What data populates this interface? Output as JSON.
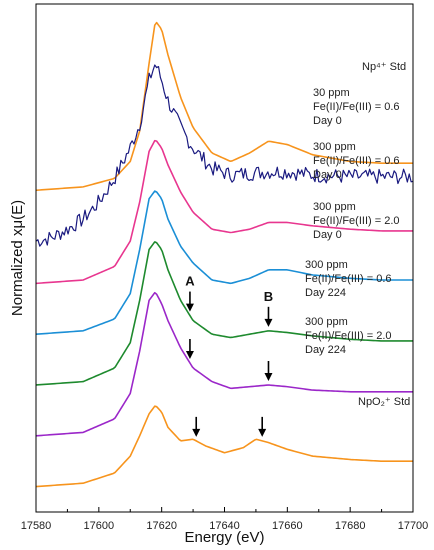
{
  "chart_data": {
    "type": "line",
    "xlabel": "Energy (eV)",
    "ylabel": "Normalized xμ(E)",
    "xlim": [
      17580,
      17700
    ],
    "x_ticks": [
      17580,
      17600,
      17620,
      17640,
      17660,
      17680,
      17700
    ],
    "grid": false,
    "series": [
      {
        "color": "#f7941d",
        "baseline": 0.75,
        "labels": [
          "Np⁴⁺ Std"
        ],
        "points": [
          [
            17580,
            0.75
          ],
          [
            17595,
            0.77
          ],
          [
            17605,
            0.82
          ],
          [
            17610,
            0.92
          ],
          [
            17613,
            1.1
          ],
          [
            17616,
            1.5
          ],
          [
            17618,
            1.75
          ],
          [
            17620,
            1.7
          ],
          [
            17622,
            1.55
          ],
          [
            17626,
            1.3
          ],
          [
            17630,
            1.12
          ],
          [
            17636,
            0.97
          ],
          [
            17642,
            0.92
          ],
          [
            17648,
            0.97
          ],
          [
            17654,
            1.04
          ],
          [
            17660,
            1.02
          ],
          [
            17668,
            0.96
          ],
          [
            17680,
            0.92
          ],
          [
            17690,
            0.91
          ],
          [
            17700,
            0.91
          ]
        ]
      },
      {
        "color": "#1a1a80",
        "baseline": 0.47,
        "labels": [
          "30 ppm",
          "Fe(II)/Fe(III) = 0.6",
          "Day 0"
        ],
        "points": [
          [
            17580,
            0.45
          ],
          [
            17585,
            0.47
          ],
          [
            17590,
            0.52
          ],
          [
            17595,
            0.58
          ],
          [
            17600,
            0.68
          ],
          [
            17605,
            0.82
          ],
          [
            17610,
            1.0
          ],
          [
            17613,
            1.14
          ],
          [
            17616,
            1.4
          ],
          [
            17618,
            1.5
          ],
          [
            17620,
            1.4
          ],
          [
            17622,
            1.28
          ],
          [
            17626,
            1.12
          ],
          [
            17630,
            1.0
          ],
          [
            17636,
            0.88
          ],
          [
            17642,
            0.84
          ],
          [
            17648,
            0.85
          ],
          [
            17654,
            0.86
          ],
          [
            17660,
            0.86
          ],
          [
            17668,
            0.84
          ],
          [
            17680,
            0.83
          ],
          [
            17690,
            0.83
          ],
          [
            17700,
            0.83
          ]
        ]
      },
      {
        "color": "#e8368f",
        "baseline": 0.2,
        "labels": [
          "300 ppm",
          "Fe(II)/Fe(III) = 0.6",
          "Day 0"
        ],
        "points": [
          [
            17580,
            0.2
          ],
          [
            17595,
            0.22
          ],
          [
            17605,
            0.3
          ],
          [
            17610,
            0.45
          ],
          [
            17613,
            0.68
          ],
          [
            17616,
            0.98
          ],
          [
            17618,
            1.05
          ],
          [
            17620,
            1.0
          ],
          [
            17622,
            0.9
          ],
          [
            17626,
            0.74
          ],
          [
            17630,
            0.62
          ],
          [
            17636,
            0.52
          ],
          [
            17642,
            0.5
          ],
          [
            17648,
            0.52
          ],
          [
            17654,
            0.56
          ],
          [
            17660,
            0.56
          ],
          [
            17668,
            0.54
          ],
          [
            17680,
            0.52
          ],
          [
            17690,
            0.51
          ],
          [
            17700,
            0.51
          ]
        ]
      },
      {
        "color": "#1b8fd6",
        "baseline": -0.1,
        "labels": [
          "300 ppm",
          "Fe(II)/Fe(III) = 2.0",
          "Day 0"
        ],
        "points": [
          [
            17580,
            -0.1
          ],
          [
            17595,
            -0.08
          ],
          [
            17605,
            -0.01
          ],
          [
            17610,
            0.14
          ],
          [
            17613,
            0.4
          ],
          [
            17616,
            0.7
          ],
          [
            17618,
            0.75
          ],
          [
            17620,
            0.7
          ],
          [
            17622,
            0.58
          ],
          [
            17626,
            0.42
          ],
          [
            17630,
            0.32
          ],
          [
            17636,
            0.22
          ],
          [
            17642,
            0.2
          ],
          [
            17648,
            0.23
          ],
          [
            17654,
            0.28
          ],
          [
            17660,
            0.28
          ],
          [
            17668,
            0.25
          ],
          [
            17680,
            0.23
          ],
          [
            17690,
            0.22
          ],
          [
            17700,
            0.22
          ]
        ]
      },
      {
        "color": "#1e8a2e",
        "baseline": -0.4,
        "labels": [
          "300 ppm",
          "Fe(II)/Fe(III) = 0.6",
          "Day 224"
        ],
        "points": [
          [
            17580,
            -0.4
          ],
          [
            17595,
            -0.38
          ],
          [
            17605,
            -0.3
          ],
          [
            17610,
            -0.15
          ],
          [
            17613,
            0.1
          ],
          [
            17616,
            0.4
          ],
          [
            17618,
            0.45
          ],
          [
            17620,
            0.4
          ],
          [
            17622,
            0.28
          ],
          [
            17626,
            0.1
          ],
          [
            17630,
            -0.02
          ],
          [
            17636,
            -0.1
          ],
          [
            17642,
            -0.12
          ],
          [
            17648,
            -0.1
          ],
          [
            17654,
            -0.08
          ],
          [
            17660,
            -0.09
          ],
          [
            17668,
            -0.11
          ],
          [
            17680,
            -0.13
          ],
          [
            17690,
            -0.14
          ],
          [
            17700,
            -0.14
          ]
        ]
      },
      {
        "color": "#9b27c9",
        "baseline": -0.7,
        "labels": [
          "300 ppm",
          "Fe(II)/Fe(III) = 2.0",
          "Day 224"
        ],
        "points": [
          [
            17580,
            -0.7
          ],
          [
            17595,
            -0.68
          ],
          [
            17605,
            -0.6
          ],
          [
            17610,
            -0.45
          ],
          [
            17613,
            -0.2
          ],
          [
            17616,
            0.1
          ],
          [
            17618,
            0.15
          ],
          [
            17620,
            0.08
          ],
          [
            17622,
            -0.02
          ],
          [
            17626,
            -0.18
          ],
          [
            17630,
            -0.3
          ],
          [
            17636,
            -0.38
          ],
          [
            17642,
            -0.42
          ],
          [
            17648,
            -0.41
          ],
          [
            17654,
            -0.4
          ],
          [
            17660,
            -0.41
          ],
          [
            17668,
            -0.43
          ],
          [
            17680,
            -0.44
          ],
          [
            17690,
            -0.44
          ],
          [
            17700,
            -0.44
          ]
        ]
      },
      {
        "color": "#f7941d",
        "baseline": -1.0,
        "labels": [
          "NpO₂⁺ Std"
        ],
        "points": [
          [
            17580,
            -1.0
          ],
          [
            17595,
            -0.98
          ],
          [
            17605,
            -0.92
          ],
          [
            17610,
            -0.82
          ],
          [
            17613,
            -0.7
          ],
          [
            17616,
            -0.57
          ],
          [
            17618,
            -0.52
          ],
          [
            17620,
            -0.56
          ],
          [
            17622,
            -0.65
          ],
          [
            17626,
            -0.73
          ],
          [
            17630,
            -0.72
          ],
          [
            17634,
            -0.76
          ],
          [
            17640,
            -0.8
          ],
          [
            17646,
            -0.77
          ],
          [
            17650,
            -0.72
          ],
          [
            17654,
            -0.74
          ],
          [
            17660,
            -0.78
          ],
          [
            17668,
            -0.82
          ],
          [
            17680,
            -0.84
          ],
          [
            17690,
            -0.85
          ],
          [
            17700,
            -0.85
          ]
        ]
      }
    ],
    "annotations": [
      {
        "text": "A",
        "x": 17629,
        "series_index": 4
      },
      {
        "text": "B",
        "x": 17654,
        "series_index": 4
      }
    ],
    "arrows": [
      {
        "x": 17629,
        "series_index": 4
      },
      {
        "x": 17654,
        "series_index": 4
      },
      {
        "x": 17629,
        "series_index": 5
      },
      {
        "x": 17654,
        "series_index": 5
      },
      {
        "x": 17631,
        "series_index": 6
      },
      {
        "x": 17652,
        "series_index": 6
      }
    ]
  }
}
